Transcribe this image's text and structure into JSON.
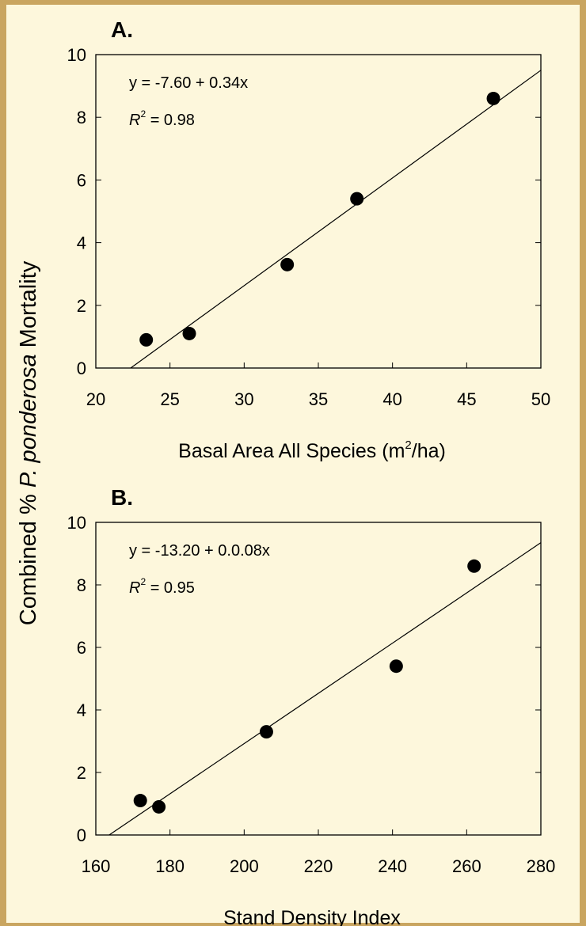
{
  "y_label": [
    "Combined % ",
    "P. ponderosa",
    " Mortality"
  ],
  "chart_data": [
    {
      "type": "scatter",
      "panel_label": "A.",
      "x_label": [
        "Basal Area All Species (m",
        "2",
        "/ha)"
      ],
      "equation": "y = -7.60 + 0.34x",
      "r2": [
        "R",
        "2",
        " = 0.98"
      ],
      "x": [
        23.4,
        26.3,
        32.9,
        37.6,
        46.8
      ],
      "values": [
        0.9,
        1.1,
        3.3,
        5.4,
        8.6
      ],
      "color": "#000000",
      "fit_line": {
        "x": [
          22.35,
          50
        ],
        "values": [
          0,
          9.5
        ]
      },
      "xlim": [
        20,
        50
      ],
      "xticks": [
        20,
        25,
        30,
        35,
        40,
        45,
        50
      ],
      "ylim": [
        0,
        10
      ],
      "yticks": [
        0,
        2,
        4,
        6,
        8,
        10
      ]
    },
    {
      "type": "scatter",
      "panel_label": "B.",
      "x_label": [
        "Stand Density Index"
      ],
      "equation": "y = -13.20 + 0.0.08x",
      "r2": [
        "R",
        "2",
        " = 0.95"
      ],
      "x": [
        172,
        177,
        206,
        241,
        262
      ],
      "values": [
        1.1,
        0.9,
        3.3,
        5.4,
        8.6
      ],
      "color": "#000000",
      "fit_line": {
        "x": [
          163.6,
          280
        ],
        "values": [
          0,
          9.35
        ]
      },
      "xlim": [
        160,
        280
      ],
      "xticks": [
        160,
        180,
        200,
        220,
        240,
        260,
        280
      ],
      "ylim": [
        0,
        10
      ],
      "yticks": [
        0,
        2,
        4,
        6,
        8,
        10
      ]
    }
  ]
}
